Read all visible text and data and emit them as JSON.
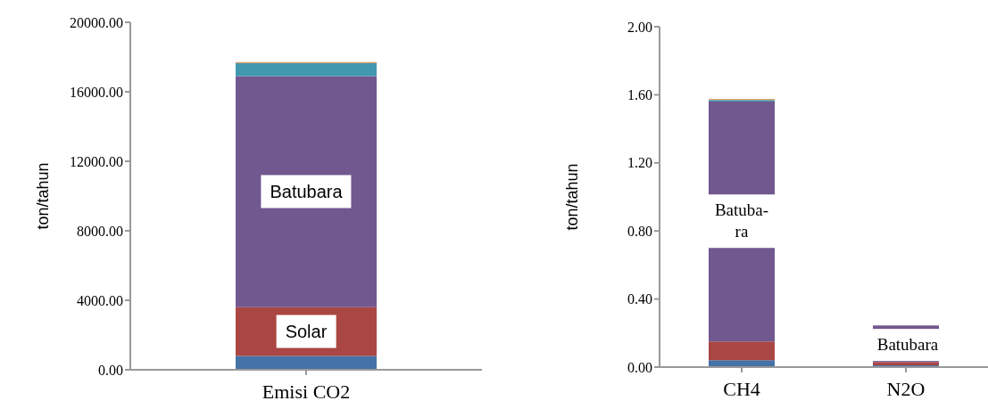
{
  "chart_data": [
    {
      "type": "bar",
      "stacked": true,
      "categories": [
        "Emisi CO2"
      ],
      "ylabel": "ton/tahun",
      "series": [
        {
          "color": "#4572a7",
          "values": [
            800
          ]
        },
        {
          "color": "#aa4643",
          "values": [
            2800
          ]
        },
        {
          "color": "#71588f",
          "values": [
            13300
          ]
        },
        {
          "color": "#4198af",
          "values": [
            750
          ]
        },
        {
          "color": "#db843d",
          "values": [
            50
          ]
        }
      ],
      "ylim": [
        0,
        20000
      ],
      "yticks": [
        {
          "value": 0,
          "label": "0.00"
        },
        {
          "value": 4000,
          "label": "4000.00"
        },
        {
          "value": 8000,
          "label": "8000.00"
        },
        {
          "value": 12000,
          "label": "12000.00"
        },
        {
          "value": 16000,
          "label": "16000.00"
        },
        {
          "value": 20000,
          "label": "20000.00"
        }
      ],
      "annotations": [
        "Batubara",
        "Solar"
      ]
    },
    {
      "type": "bar",
      "stacked": true,
      "categories": [
        "CH4",
        "N2O"
      ],
      "ylabel": "ton/tahun",
      "series": [
        {
          "color": "#4572a7",
          "values": [
            0.04,
            0.01
          ]
        },
        {
          "color": "#aa4643",
          "values": [
            0.11,
            0.02
          ]
        },
        {
          "color": "#71588f",
          "values": [
            1.41,
            0.215
          ]
        },
        {
          "color": "#4198af",
          "values": [
            0.01,
            null
          ]
        },
        {
          "color": "#db843d",
          "values": [
            0.005,
            null
          ]
        }
      ],
      "ylim": [
        0,
        2
      ],
      "yticks": [
        {
          "value": 0,
          "label": "0.00"
        },
        {
          "value": 0.4,
          "label": "0.40"
        },
        {
          "value": 0.8,
          "label": "0.80"
        },
        {
          "value": 1.2,
          "label": "1.20"
        },
        {
          "value": 1.6,
          "label": "1.60"
        },
        {
          "value": 2,
          "label": "2.00"
        }
      ],
      "annotations": [
        "Batuba-\nra",
        "Batubara"
      ]
    }
  ]
}
